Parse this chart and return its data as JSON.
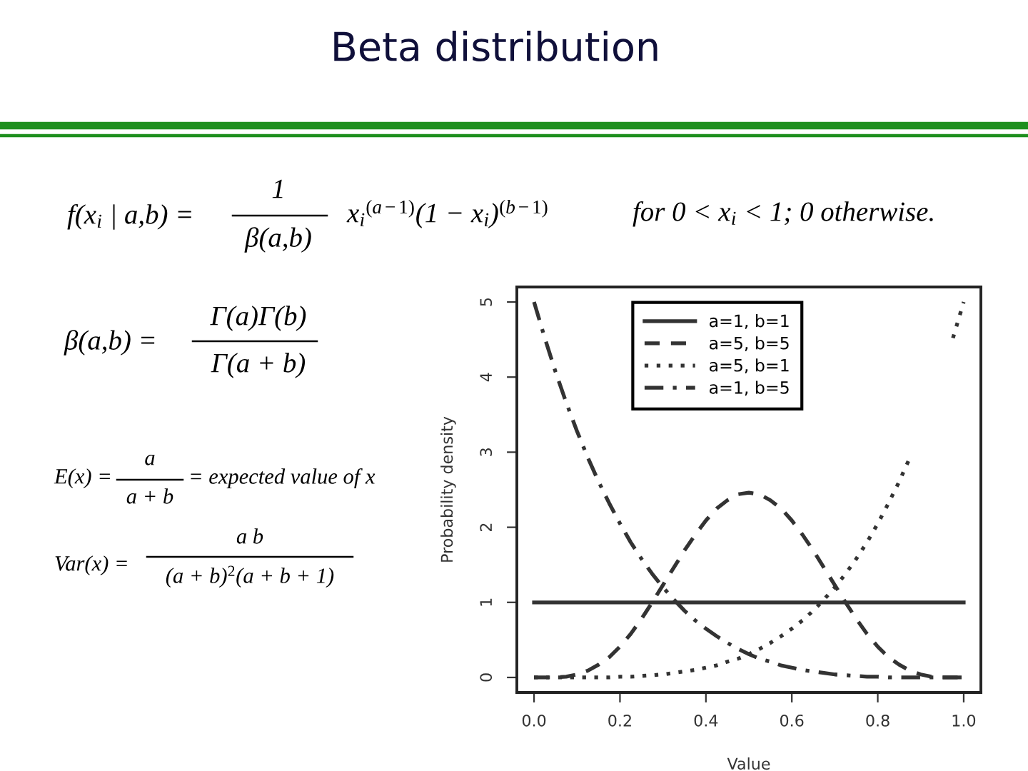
{
  "chart_data": {
    "type": "line",
    "title": "Beta distribution",
    "xlabel": "Value",
    "ylabel": "Probability density",
    "x": [
      0,
      0.025,
      0.05,
      0.075,
      0.1,
      0.125,
      0.15,
      0.175,
      0.2,
      0.225,
      0.25,
      0.275,
      0.3,
      0.325,
      0.35,
      0.375,
      0.4,
      0.425,
      0.45,
      0.475,
      0.5,
      0.525,
      0.55,
      0.575,
      0.6,
      0.625,
      0.65,
      0.675,
      0.7,
      0.725,
      0.75,
      0.775,
      0.8,
      0.825,
      0.85,
      0.875,
      0.9,
      0.925,
      0.95,
      0.975,
      1
    ],
    "series": [
      {
        "name": "a=1, b=1",
        "color": "#333333",
        "line_style": "solid",
        "x": [
          0,
          1
        ],
        "values": [
          1,
          1
        ]
      },
      {
        "name": "a=5, b=5",
        "color": "#333333",
        "line_style": "dashed",
        "values": [
          0,
          0,
          0,
          0.01,
          0.04,
          0.09,
          0.17,
          0.27,
          0.41,
          0.58,
          0.78,
          1.0,
          1.23,
          1.46,
          1.69,
          1.9,
          2.09,
          2.25,
          2.36,
          2.44,
          2.46,
          2.44,
          2.36,
          2.25,
          2.09,
          1.9,
          1.69,
          1.46,
          1.23,
          1.0,
          0.78,
          0.58,
          0.41,
          0.27,
          0.17,
          0.09,
          0.04,
          0.01,
          0,
          0,
          0
        ]
      },
      {
        "name": "a=5, b=1",
        "color": "#333333",
        "line_style": "dotted",
        "values": [
          0,
          0,
          0,
          0,
          0,
          0,
          0,
          0,
          0.01,
          0.01,
          0.02,
          0.03,
          0.04,
          0.06,
          0.08,
          0.1,
          0.13,
          0.16,
          0.21,
          0.25,
          0.31,
          0.38,
          0.46,
          0.55,
          0.65,
          0.76,
          0.89,
          1.04,
          1.2,
          1.38,
          1.58,
          1.8,
          2.05,
          2.32,
          2.61,
          2.93,
          null,
          null,
          null,
          4.52,
          5
        ]
      },
      {
        "name": "a=1, b=5",
        "color": "#333333",
        "line_style": "dashdot",
        "values": [
          5,
          4.52,
          4.07,
          3.66,
          3.28,
          2.93,
          2.61,
          2.32,
          2.05,
          1.8,
          1.58,
          1.38,
          1.2,
          1.04,
          0.89,
          0.76,
          0.65,
          0.55,
          0.46,
          0.38,
          0.31,
          0.25,
          0.21,
          0.16,
          0.13,
          0.1,
          0.08,
          0.06,
          0.04,
          0.03,
          0.02,
          0.01,
          0.01,
          0,
          0,
          0,
          0,
          0,
          0,
          0,
          0
        ]
      }
    ],
    "xlim": [
      -0.04,
      1.04
    ],
    "ylim": [
      -0.2,
      5.2
    ],
    "xticks": [
      {
        "value": 0,
        "label": "0.0"
      },
      0.2,
      0.4,
      0.6,
      0.8,
      {
        "value": 1,
        "label": "1.0"
      }
    ],
    "yticks": [
      0,
      1,
      2,
      3,
      4,
      5
    ],
    "legend": "top",
    "annotations": [
      "f(x$_{i}$ | a,b) =",
      "1",
      "β(a,b)",
      "x$_{i}$$^{(a−1)}$(1 − x$_{i}$)$^{(b−1)}$",
      "for 0 < x$_{i}$ < 1; 0 otherwise.",
      "β(a,b) =",
      "Γ(a)Γ(b)",
      "Γ(a + b)",
      "E(x) =",
      "a",
      "a + b",
      "= expected value of x",
      "Var(x) =",
      "a b",
      "(a + b)$^{2}$(a + b + 1)"
    ]
  }
}
